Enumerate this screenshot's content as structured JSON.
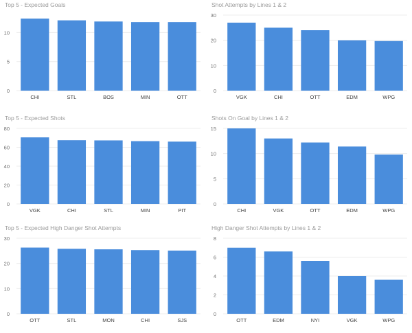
{
  "colors": {
    "bar": "#4a8ddc",
    "grid": "#ececec",
    "axis_text": "#707070"
  },
  "chart_data": [
    {
      "type": "bar",
      "title": "Top 5 - Expected Goals",
      "categories": [
        "CHI",
        "STL",
        "BOS",
        "MIN",
        "OTT"
      ],
      "values": [
        12.4,
        12.1,
        11.9,
        11.8,
        11.8
      ],
      "yticks": [
        0,
        5,
        10
      ],
      "ylim": [
        0,
        13
      ]
    },
    {
      "type": "bar",
      "title": "Shot Attempts by Lines 1 & 2",
      "categories": [
        "VGK",
        "CHI",
        "OTT",
        "EDM",
        "WPG"
      ],
      "values": [
        27,
        25,
        24,
        20,
        19.7
      ],
      "yticks": [
        0,
        10,
        20,
        30
      ],
      "ylim": [
        0,
        30
      ]
    },
    {
      "type": "bar",
      "title": "Top 5 - Expected Shots",
      "categories": [
        "VGK",
        "CHI",
        "STL",
        "MIN",
        "PIT"
      ],
      "values": [
        70.5,
        67.5,
        67.3,
        66.5,
        66
      ],
      "yticks": [
        0,
        20,
        40,
        60,
        80
      ],
      "ylim": [
        0,
        80
      ]
    },
    {
      "type": "bar",
      "title": "Shots On Goal by Lines 1 & 2",
      "categories": [
        "CHI",
        "VGK",
        "OTT",
        "EDM",
        "WPG"
      ],
      "values": [
        15,
        13,
        12.2,
        11.4,
        9.8
      ],
      "yticks": [
        0,
        5,
        10,
        15
      ],
      "ylim": [
        0,
        15
      ]
    },
    {
      "type": "bar",
      "title": "Top 5 - Expected High Danger Shot Attempts",
      "categories": [
        "OTT",
        "STL",
        "MON",
        "CHI",
        "SJS"
      ],
      "values": [
        26.3,
        25.8,
        25.6,
        25.3,
        25.1
      ],
      "yticks": [
        0,
        10,
        20,
        30
      ],
      "ylim": [
        0,
        30
      ]
    },
    {
      "type": "bar",
      "title": "High Danger Shot Attempts by Lines 1 & 2",
      "categories": [
        "OTT",
        "EDM",
        "NYI",
        "VGK",
        "WPG"
      ],
      "values": [
        7,
        6.6,
        5.6,
        4,
        3.6
      ],
      "yticks": [
        0,
        2,
        4,
        6,
        8
      ],
      "ylim": [
        0,
        8
      ]
    }
  ]
}
